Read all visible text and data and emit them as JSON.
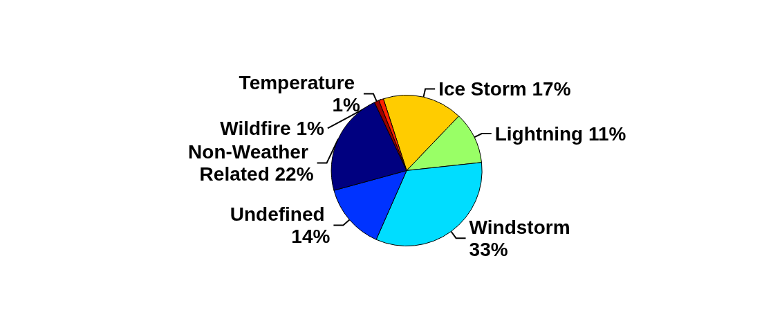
{
  "chart_data": {
    "type": "pie",
    "categories": [
      "Ice Storm",
      "Lightning",
      "Windstorm",
      "Undefined",
      "Non-Weather Related",
      "Temperature",
      "Wildfire"
    ],
    "values": [
      17,
      11,
      33,
      14,
      22,
      1,
      1
    ],
    "value_labels": [
      "17%",
      "11%",
      "33%",
      "14%",
      "22%",
      "1%",
      "1%"
    ],
    "colors": [
      "#ffcc00",
      "#99ff66",
      "#00ddff",
      "#0033ff",
      "#000080",
      "#990000",
      "#ff2200"
    ],
    "legend": false
  }
}
